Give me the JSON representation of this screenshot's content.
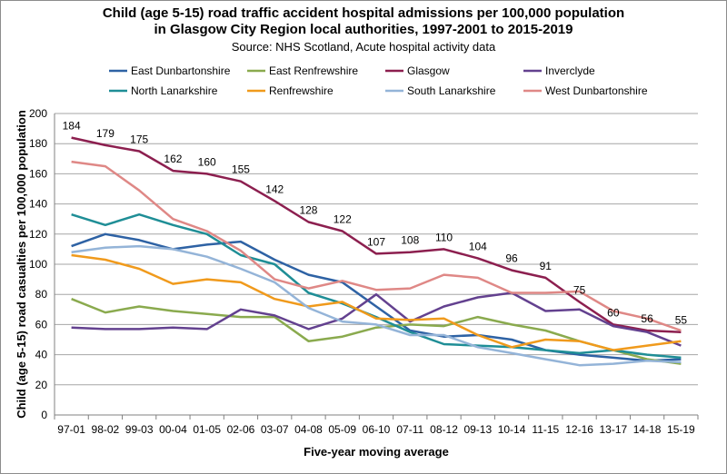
{
  "chart_data": {
    "type": "line",
    "title_line1": "Child (age 5-15) road traffic accident hospital admissions per 100,000 population",
    "title_line2": "in Glasgow City Region local authorities, 1997-2001 to 2015-2019",
    "subtitle": "Source: NHS Scotland, Acute hospital activity data",
    "xlabel": "Five-year moving average",
    "ylabel": "Child (age 5-15) road casualties per 100,000 population",
    "ylim": [
      0,
      200
    ],
    "yticks": [
      0,
      20,
      40,
      60,
      80,
      100,
      120,
      140,
      160,
      180,
      200
    ],
    "grid": true,
    "legend_position": "top",
    "categories": [
      "97-01",
      "98-02",
      "99-03",
      "00-04",
      "01-05",
      "02-06",
      "03-07",
      "04-08",
      "05-09",
      "06-10",
      "07-11",
      "08-12",
      "09-13",
      "10-14",
      "11-15",
      "12-16",
      "13-17",
      "14-18",
      "15-19"
    ],
    "series": [
      {
        "name": "East Dunbartonshire",
        "color": "#2e62a4",
        "values": [
          112,
          120,
          116,
          110,
          113,
          115,
          103,
          93,
          88,
          72,
          56,
          52,
          53,
          50,
          43,
          40,
          38,
          36,
          37
        ]
      },
      {
        "name": "East Renfrewshire",
        "color": "#8aaa4e",
        "values": [
          77,
          68,
          72,
          69,
          67,
          65,
          65,
          49,
          52,
          58,
          60,
          59,
          65,
          60,
          56,
          49,
          43,
          37,
          34
        ]
      },
      {
        "name": "Glasgow",
        "color": "#8c1f4f",
        "values": [
          184,
          179,
          175,
          162,
          160,
          155,
          142,
          128,
          122,
          107,
          108,
          110,
          104,
          96,
          91,
          75,
          60,
          56,
          55
        ]
      },
      {
        "name": "Inverclyde",
        "color": "#63418f",
        "values": [
          58,
          57,
          57,
          58,
          57,
          70,
          66,
          57,
          64,
          80,
          62,
          72,
          78,
          81,
          69,
          70,
          59,
          55,
          46
        ]
      },
      {
        "name": "North Lanarkshire",
        "color": "#1f8e96",
        "values": [
          133,
          126,
          133,
          126,
          120,
          106,
          100,
          81,
          74,
          65,
          55,
          47,
          46,
          45,
          43,
          41,
          43,
          40,
          38
        ]
      },
      {
        "name": "Renfrewshire",
        "color": "#f09a1c",
        "values": [
          106,
          103,
          97,
          87,
          90,
          88,
          77,
          72,
          75,
          64,
          63,
          64,
          53,
          45,
          50,
          49,
          43,
          46,
          49
        ]
      },
      {
        "name": "South Lanarkshire",
        "color": "#94b4d8",
        "values": [
          108,
          111,
          112,
          110,
          105,
          97,
          88,
          71,
          62,
          60,
          53,
          53,
          45,
          41,
          37,
          33,
          34,
          36,
          35
        ]
      },
      {
        "name": "West Dunbartonshire",
        "color": "#df8886",
        "values": [
          168,
          165,
          149,
          130,
          122,
          109,
          90,
          84,
          89,
          83,
          84,
          93,
          91,
          81,
          81,
          82,
          69,
          64,
          56
        ]
      }
    ],
    "data_labels": {
      "series": "Glasgow",
      "values": [
        "184",
        "179",
        "175",
        "162",
        "160",
        "155",
        "142",
        "128",
        "122",
        "107",
        "108",
        "110",
        "104",
        "96",
        "91",
        "75",
        "60",
        "56",
        "55"
      ]
    }
  }
}
